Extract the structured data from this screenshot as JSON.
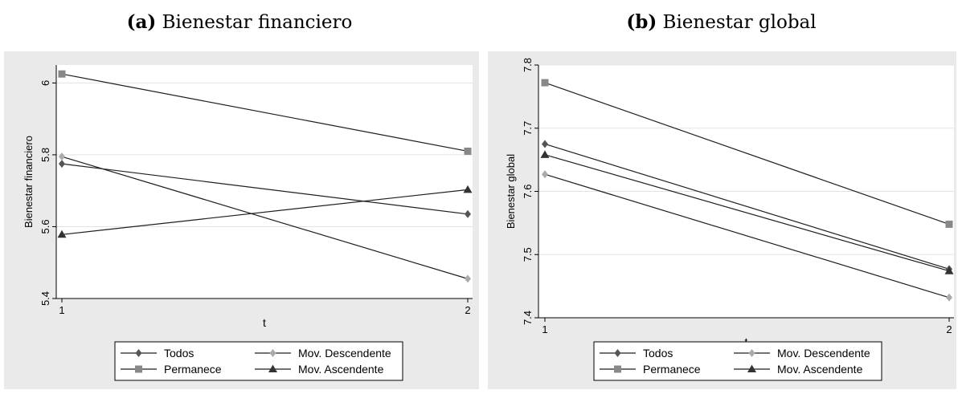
{
  "chart_data": [
    {
      "type": "line",
      "panel_label": "(a)",
      "title": "Bienestar financiero",
      "xlabel": "t",
      "ylabel": "Bienestar financiero",
      "x": [
        1,
        2
      ],
      "xticks": [
        "1",
        "2"
      ],
      "ylim": [
        5.4,
        6.05
      ],
      "yticks": [
        "5.4",
        "5.6",
        "5.8",
        "6"
      ],
      "grid": true,
      "legend": "bottom",
      "series": [
        {
          "name": "Todos",
          "values": [
            5.775,
            5.635
          ],
          "marker": "diamond",
          "color": "#555555"
        },
        {
          "name": "Mov. Descendente",
          "values": [
            5.795,
            5.455
          ],
          "marker": "diamond",
          "color": "#aaaaaa"
        },
        {
          "name": "Permanece",
          "values": [
            6.025,
            5.81
          ],
          "marker": "square",
          "color": "#888888"
        },
        {
          "name": "Mov. Ascendente",
          "values": [
            5.578,
            5.703
          ],
          "marker": "triangle",
          "color": "#333333"
        }
      ]
    },
    {
      "type": "line",
      "panel_label": "(b)",
      "title": "Bienestar global",
      "xlabel": "t",
      "ylabel": "Bienestar global",
      "x": [
        1,
        2
      ],
      "xticks": [
        "1",
        "2"
      ],
      "ylim": [
        7.4,
        7.8
      ],
      "yticks": [
        "7.4",
        "7.5",
        "7.6",
        "7.7",
        "7.8"
      ],
      "grid": true,
      "legend": "bottom",
      "series": [
        {
          "name": "Todos",
          "values": [
            7.675,
            7.477
          ],
          "marker": "diamond",
          "color": "#555555"
        },
        {
          "name": "Mov. Descendente",
          "values": [
            7.627,
            7.432
          ],
          "marker": "diamond",
          "color": "#aaaaaa"
        },
        {
          "name": "Permanece",
          "values": [
            7.772,
            7.548
          ],
          "marker": "square",
          "color": "#888888"
        },
        {
          "name": "Mov. Ascendente",
          "values": [
            7.658,
            7.474
          ],
          "marker": "triangle",
          "color": "#333333"
        }
      ]
    }
  ]
}
